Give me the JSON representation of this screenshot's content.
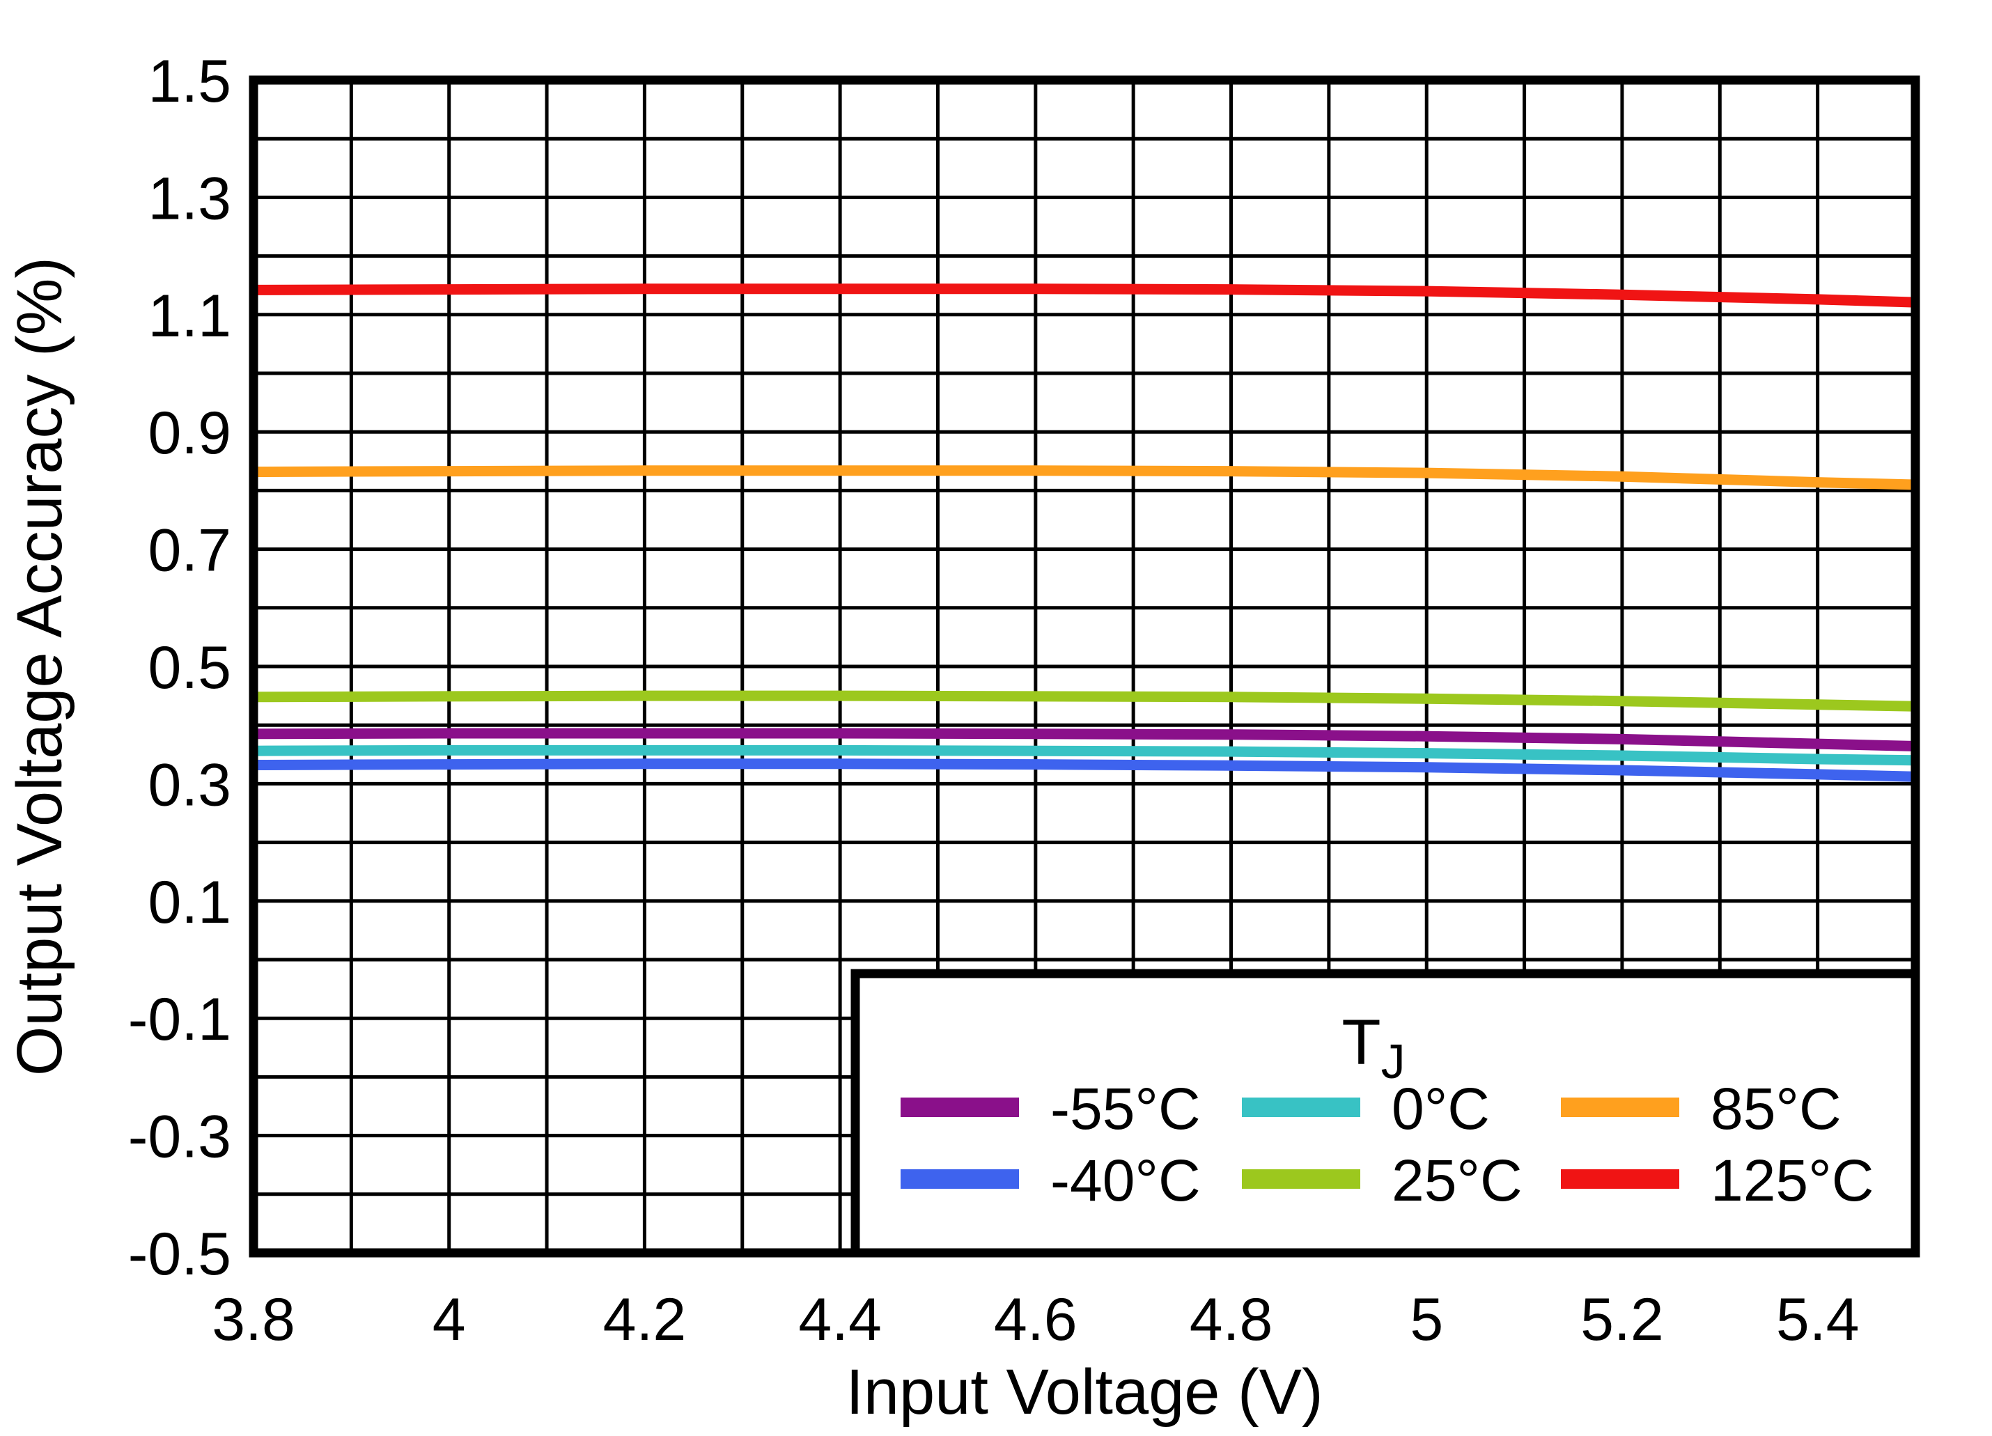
{
  "chart_data": {
    "type": "line",
    "title": "",
    "xlabel": "Input Voltage (V)",
    "ylabel": "Output Voltage Accuracy (%)",
    "xlim": [
      3.8,
      5.5
    ],
    "ylim": [
      -0.5,
      1.5
    ],
    "grid": "on",
    "grid_minor_step_x": 0.1,
    "grid_minor_step_y": 0.1,
    "background_color": "#FFFFFF",
    "grid_color": "#000000",
    "x_tick_labels": [
      "3.8",
      "4",
      "4.2",
      "4.4",
      "4.6",
      "4.8",
      "5",
      "5.2",
      "5.4"
    ],
    "x_tick_values": [
      3.8,
      4.0,
      4.2,
      4.4,
      4.6,
      4.8,
      5.0,
      5.2,
      5.4
    ],
    "y_tick_labels": [
      "1.5",
      "1.3",
      "1.1",
      "0.9",
      "0.7",
      "0.5",
      "0.3",
      "0.1",
      "-0.1",
      "-0.3",
      "-0.5"
    ],
    "y_tick_values": [
      1.5,
      1.3,
      1.1,
      0.9,
      0.7,
      0.5,
      0.3,
      0.1,
      -0.1,
      -0.3,
      -0.5
    ],
    "x": [
      3.8,
      4.0,
      4.2,
      4.4,
      4.6,
      4.8,
      5.0,
      5.2,
      5.4,
      5.5
    ],
    "series": [
      {
        "name": "-55°C",
        "color": "#8A108A",
        "values": [
          0.385,
          0.386,
          0.386,
          0.386,
          0.385,
          0.384,
          0.381,
          0.376,
          0.368,
          0.364
        ]
      },
      {
        "name": "-40°C",
        "color": "#3E63EE",
        "values": [
          0.332,
          0.333,
          0.334,
          0.334,
          0.333,
          0.331,
          0.328,
          0.323,
          0.316,
          0.312
        ]
      },
      {
        "name": "0°C",
        "color": "#38C2C4",
        "values": [
          0.356,
          0.357,
          0.357,
          0.357,
          0.356,
          0.355,
          0.352,
          0.348,
          0.342,
          0.34
        ]
      },
      {
        "name": "25°C",
        "color": "#9CC81E",
        "values": [
          0.448,
          0.449,
          0.45,
          0.45,
          0.449,
          0.448,
          0.445,
          0.441,
          0.435,
          0.432
        ]
      },
      {
        "name": "85°C",
        "color": "#FFA01E",
        "values": [
          0.832,
          0.833,
          0.834,
          0.834,
          0.834,
          0.833,
          0.83,
          0.824,
          0.814,
          0.81
        ]
      },
      {
        "name": "125°C",
        "color": "#F01414",
        "values": [
          1.142,
          1.143,
          1.144,
          1.144,
          1.144,
          1.143,
          1.14,
          1.134,
          1.126,
          1.121
        ]
      }
    ],
    "legend": {
      "title": "T",
      "title_subscript": "J",
      "position": "inside-bottom-right",
      "rows": [
        [
          "-55°C",
          "0°C",
          "85°C"
        ],
        [
          "-40°C",
          "25°C",
          "125°C"
        ]
      ]
    }
  }
}
